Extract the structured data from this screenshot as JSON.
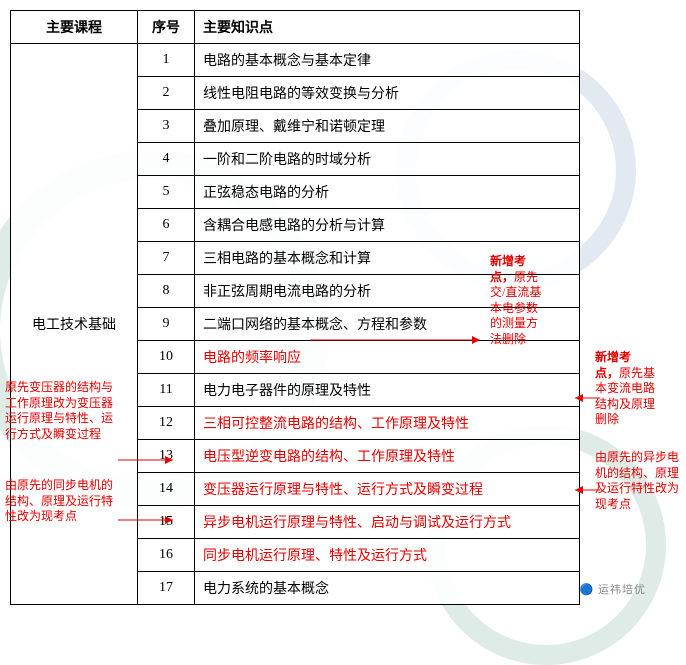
{
  "headers": {
    "course": "主要课程",
    "num": "序号",
    "topic": "主要知识点"
  },
  "courseName": "电工技术基础",
  "rows": [
    {
      "n": "1",
      "t": "电路的基本概念与基本定律",
      "red": false
    },
    {
      "n": "2",
      "t": "线性电阻电路的等效变换与分析",
      "red": false
    },
    {
      "n": "3",
      "t": "叠加原理、戴维宁和诺顿定理",
      "red": false
    },
    {
      "n": "4",
      "t": "一阶和二阶电路的时域分析",
      "red": false
    },
    {
      "n": "5",
      "t": "正弦稳态电路的分析",
      "red": false
    },
    {
      "n": "6",
      "t": "含耦合电感电路的分析与计算",
      "red": false
    },
    {
      "n": "7",
      "t": "三相电路的基本概念和计算",
      "red": false
    },
    {
      "n": "8",
      "t": "非正弦周期电流电路的分析",
      "red": false
    },
    {
      "n": "9",
      "t": "二端口网络的基本概念、方程和参数",
      "red": false
    },
    {
      "n": "10",
      "t": "电路的频率响应",
      "red": true
    },
    {
      "n": "11",
      "t": "电力电子器件的原理及特性",
      "red": false
    },
    {
      "n": "12",
      "t": "三相可控整流电路的结构、工作原理及特性",
      "red": true
    },
    {
      "n": "13",
      "t": "电压型逆变电路的结构、工作原理及特性",
      "red": true
    },
    {
      "n": "14",
      "t": "变压器运行原理与特性、运行方式及瞬变过程",
      "red": true
    },
    {
      "n": "15",
      "t": "异步电机运行原理与特性、启动与调试及运行方式",
      "red": true
    },
    {
      "n": "16",
      "t": "同步电机运行原理、特性及运行方式",
      "red": true
    },
    {
      "n": "17",
      "t": "电力系统的基本概念",
      "red": false
    }
  ],
  "annotations": {
    "a1": "新增考点，原先交/直流基本电参数的测量方法删除",
    "a2": "新增考点，原先基本变流电路结构及原理删除",
    "a3": "原先变压器的结构与工作原理改为变压器运行原理与特性、运行方式及瞬变过程",
    "a4": "由原先的同步电机的结构、原理及运行特性改为现考点",
    "a5": "由原先的异步电机的结构、原理及运行特性改为现考点"
  },
  "footer": "🔵 运祎培优"
}
